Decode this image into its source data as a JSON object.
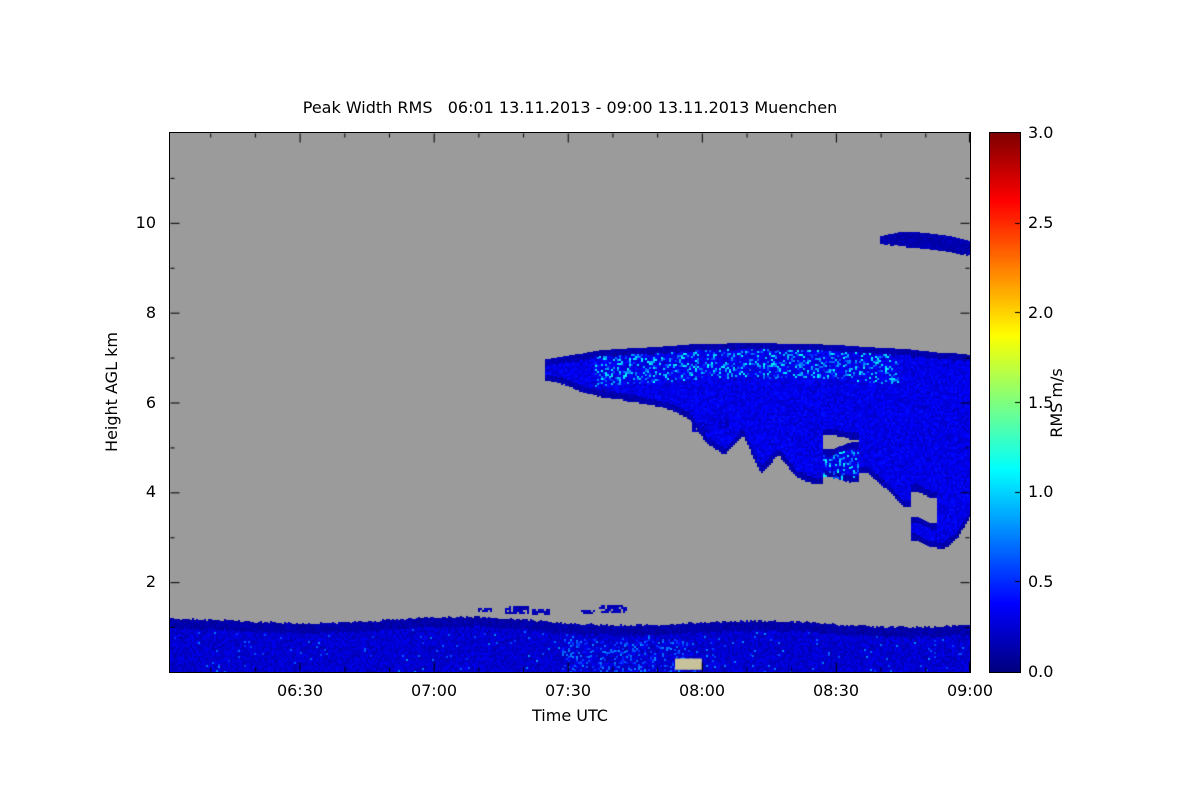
{
  "chart_data": {
    "type": "heatmap",
    "title": "Peak Width RMS   06:01 13.11.2013 - 09:00 13.11.2013 Muenchen",
    "xlabel": "Time UTC",
    "ylabel": "Height AGL km",
    "x_domain": {
      "start_label": "06:01",
      "end_label": "09:00",
      "start_minutes": 361,
      "end_minutes": 540
    },
    "y_domain_km": [
      0,
      12
    ],
    "x_ticks": [
      {
        "label": "06:30",
        "minutes": 390
      },
      {
        "label": "07:00",
        "minutes": 420
      },
      {
        "label": "07:30",
        "minutes": 450
      },
      {
        "label": "08:00",
        "minutes": 480
      },
      {
        "label": "08:30",
        "minutes": 510
      },
      {
        "label": "09:00",
        "minutes": 540
      }
    ],
    "y_ticks": [
      {
        "label": "2",
        "km": 2
      },
      {
        "label": "4",
        "km": 4
      },
      {
        "label": "6",
        "km": 6
      },
      {
        "label": "8",
        "km": 8
      },
      {
        "label": "10",
        "km": 10
      }
    ],
    "colorbar": {
      "label": "RMS m/s",
      "range": [
        0.0,
        3.0
      ],
      "tick_labels": [
        "0.0",
        "0.5",
        "1.0",
        "1.5",
        "2.0",
        "2.5",
        "3.0"
      ],
      "colormap": "jet",
      "stops": [
        {
          "value": 0.0,
          "color": "#00007f"
        },
        {
          "value": 0.4,
          "color": "#0000ff"
        },
        {
          "value": 1.1,
          "color": "#00ffff"
        },
        {
          "value": 1.5,
          "color": "#7fff7f"
        },
        {
          "value": 1.9,
          "color": "#ffff00"
        },
        {
          "value": 2.6,
          "color": "#ff0000"
        },
        {
          "value": 3.0,
          "color": "#7f0000"
        }
      ]
    },
    "background_color": "#9b9b9b",
    "background_meaning": "no signal / below detection",
    "regions": {
      "boundary_layer": {
        "t_range": [
          361,
          540
        ],
        "top_km_base": 1.1,
        "bottom_km": 0.0,
        "base_value_rms": 0.28,
        "dark_fringe_value": 0.12,
        "bright_zone": {
          "t_range": [
            448,
            478
          ],
          "h_range": [
            0.0,
            0.75
          ],
          "value_range": [
            0.4,
            0.8
          ]
        }
      },
      "cloud_columns": [
        {
          "t": 445,
          "segs": [
            [
              6.5,
              6.95
            ]
          ]
        },
        {
          "t": 449,
          "segs": [
            [
              6.42,
              7.02
            ]
          ]
        },
        {
          "t": 453,
          "segs": [
            [
              6.25,
              7.08
            ]
          ]
        },
        {
          "t": 457,
          "segs": [
            [
              6.15,
              7.15
            ]
          ]
        },
        {
          "t": 461,
          "segs": [
            [
              6.1,
              7.18
            ]
          ]
        },
        {
          "t": 465,
          "segs": [
            [
              6.02,
              7.2
            ]
          ]
        },
        {
          "t": 469,
          "segs": [
            [
              5.95,
              7.22
            ]
          ]
        },
        {
          "t": 473,
          "segs": [
            [
              5.85,
              7.25
            ]
          ]
        },
        {
          "t": 477,
          "segs": [
            [
              5.65,
              7.28
            ]
          ]
        },
        {
          "t": 481,
          "segs": [
            [
              5.1,
              7.3
            ]
          ]
        },
        {
          "t": 485,
          "segs": [
            [
              4.85,
              7.3
            ]
          ]
        },
        {
          "t": 489,
          "segs": [
            [
              5.3,
              7.32
            ]
          ]
        },
        {
          "t": 493,
          "segs": [
            [
              4.45,
              7.32
            ]
          ]
        },
        {
          "t": 497,
          "segs": [
            [
              4.85,
              7.3
            ]
          ]
        },
        {
          "t": 501,
          "segs": [
            [
              4.35,
              7.3
            ]
          ]
        },
        {
          "t": 505,
          "segs": [
            [
              4.2,
              7.3
            ]
          ]
        },
        {
          "t": 509,
          "segs": [
            [
              4.35,
              4.95
            ],
            [
              5.3,
              7.28
            ]
          ]
        },
        {
          "t": 513,
          "segs": [
            [
              4.25,
              5.1
            ],
            [
              5.2,
              7.25
            ]
          ]
        },
        {
          "t": 517,
          "segs": [
            [
              4.45,
              7.22
            ]
          ]
        },
        {
          "t": 521,
          "segs": [
            [
              4.1,
              7.2
            ]
          ]
        },
        {
          "t": 525,
          "segs": [
            [
              3.7,
              7.18
            ]
          ]
        },
        {
          "t": 528,
          "segs": [
            [
              2.95,
              3.45
            ],
            [
              4.05,
              7.15
            ]
          ]
        },
        {
          "t": 531,
          "segs": [
            [
              2.8,
              3.3
            ],
            [
              3.9,
              7.12
            ]
          ]
        },
        {
          "t": 534,
          "segs": [
            [
              2.75,
              7.1
            ]
          ]
        },
        {
          "t": 537,
          "segs": [
            [
              3.0,
              7.08
            ]
          ]
        },
        {
          "t": 540,
          "segs": [
            [
              3.5,
              7.05
            ]
          ]
        }
      ],
      "cloud_values": {
        "base_rms": 0.3,
        "streak_zone_t": [
          456,
          524
        ],
        "streak_depth_km": 0.75,
        "streak_value_range": [
          0.5,
          1.15
        ]
      },
      "high_band_columns": [
        {
          "t": 520,
          "segs": [
            [
              9.55,
              9.7
            ]
          ]
        },
        {
          "t": 524,
          "segs": [
            [
              9.5,
              9.78
            ]
          ]
        },
        {
          "t": 528,
          "segs": [
            [
              9.45,
              9.78
            ]
          ]
        },
        {
          "t": 532,
          "segs": [
            [
              9.42,
              9.74
            ]
          ]
        },
        {
          "t": 536,
          "segs": [
            [
              9.36,
              9.68
            ]
          ]
        },
        {
          "t": 540,
          "segs": [
            [
              9.28,
              9.58
            ]
          ]
        }
      ],
      "high_band_value_rms": 0.15,
      "specks": [
        [
          430,
          433,
          1.35,
          1.42
        ],
        [
          436,
          441,
          1.3,
          1.45
        ],
        [
          442,
          446,
          1.28,
          1.4
        ],
        [
          453,
          456,
          1.3,
          1.38
        ],
        [
          457,
          463,
          1.32,
          1.48
        ],
        [
          478,
          481,
          5.35,
          5.55
        ],
        [
          484,
          486,
          5.45,
          5.6
        ]
      ],
      "speck_value_rms": 0.15,
      "artifact": {
        "t_range": [
          474,
          480
        ],
        "h_range": [
          0.05,
          0.3
        ],
        "color": "#c8c29a"
      }
    }
  }
}
